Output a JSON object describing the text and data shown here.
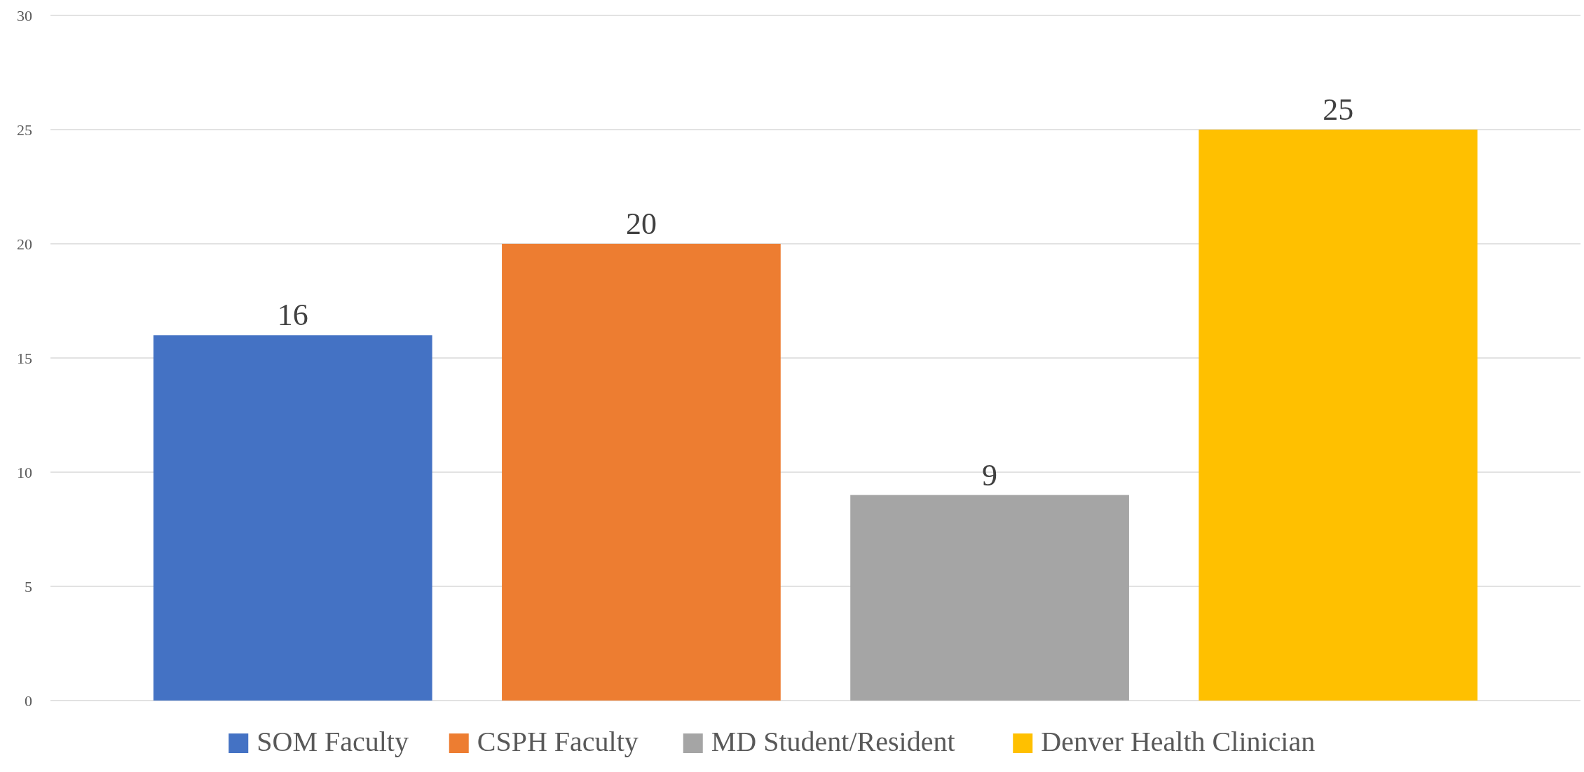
{
  "chart_data": {
    "type": "bar",
    "categories": [
      null
    ],
    "series": [
      {
        "name": "SOM Faculty",
        "color": "#4472c4",
        "values": [
          16
        ]
      },
      {
        "name": "CSPH Faculty",
        "color": "#ed7d31",
        "values": [
          20
        ]
      },
      {
        "name": "MD Student/Resident",
        "color": "#a5a5a5",
        "values": [
          9
        ]
      },
      {
        "name": "Denver Health Clinician",
        "color": "#ffc000",
        "values": [
          25
        ]
      }
    ],
    "ylim": [
      0,
      30
    ],
    "yticks": [
      0,
      5,
      10,
      15,
      20,
      25,
      30
    ],
    "grid": "y",
    "legend": "bottom",
    "data_labels": true
  }
}
